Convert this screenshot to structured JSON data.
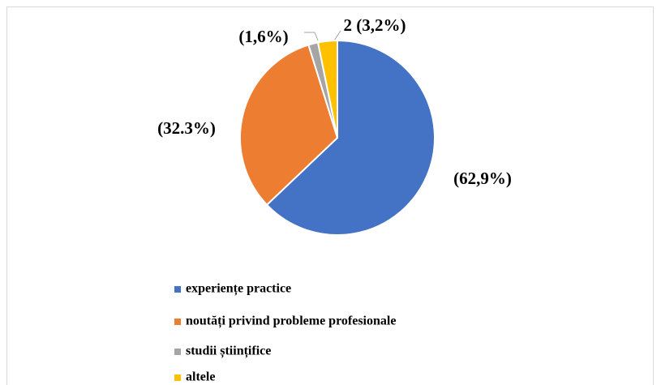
{
  "chart_data": {
    "type": "pie",
    "categories": [
      "experiențe practice",
      "noutăți privind probleme profesionale",
      "studii științifice",
      "altele"
    ],
    "values": [
      62.9,
      32.3,
      1.6,
      3.2
    ],
    "value_labels": [
      "(62,9%)",
      "(32.3%)",
      "(1,6%)",
      "2 (3,2%)"
    ],
    "colors": [
      "#4472c4",
      "#ed7d31",
      "#a5a5a5",
      "#ffc000"
    ],
    "legend": "bottom"
  }
}
